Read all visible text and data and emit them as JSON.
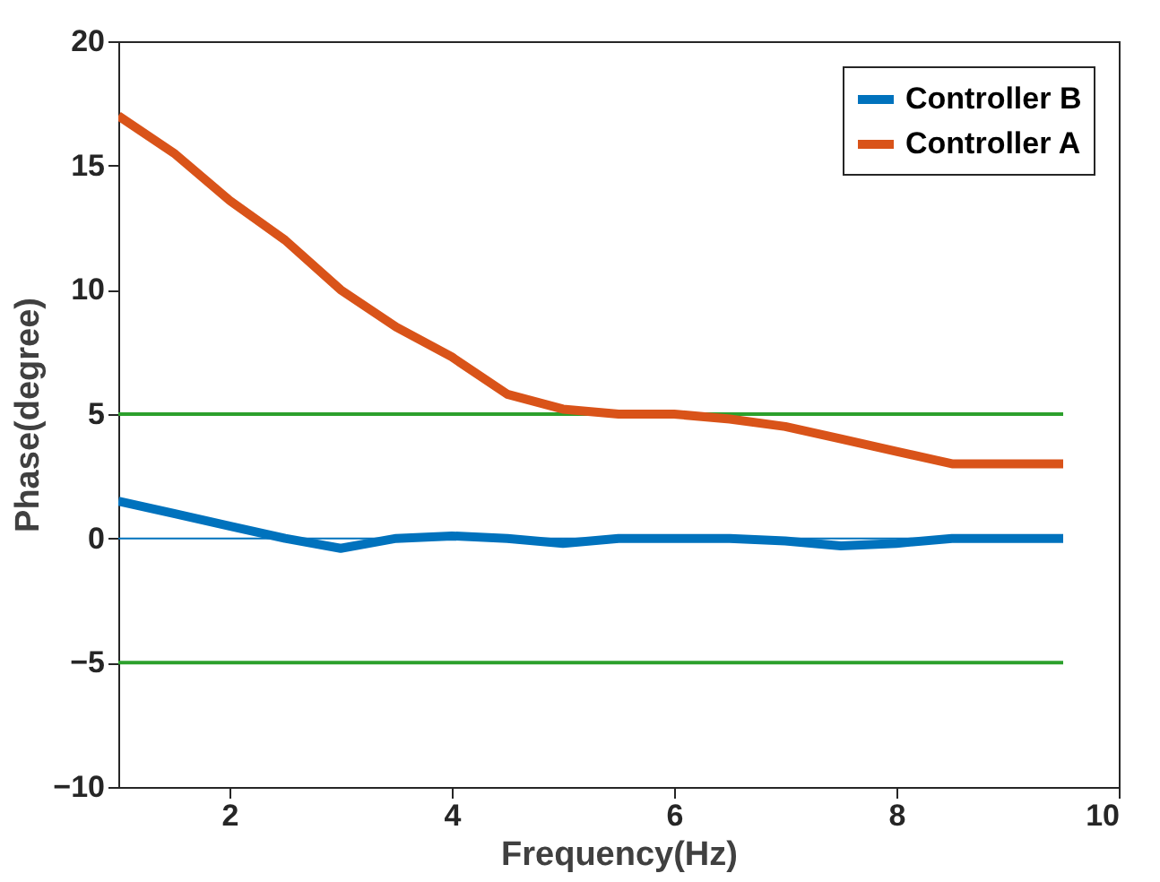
{
  "chart_data": {
    "type": "line",
    "xlabel": "Frequency(Hz)",
    "ylabel": "Phase(degree)",
    "xlim": [
      1,
      10
    ],
    "xticks": [
      2,
      4,
      6,
      8,
      10
    ],
    "ylim": [
      -10,
      20
    ],
    "yticks": [
      -10,
      -5,
      0,
      5,
      10,
      15,
      20
    ],
    "grid": false,
    "legend": "top right",
    "line_style": "solid",
    "marker": "none",
    "series": [
      {
        "color": "#0072bd",
        "x": [
          1,
          9.5
        ],
        "values": [
          0,
          0
        ]
      },
      {
        "color": "#2ca02c",
        "x": [
          1,
          9.5
        ],
        "values": [
          5,
          5
        ]
      },
      {
        "color": "#2ca02c",
        "x": [
          1,
          9.5
        ],
        "values": [
          -5,
          -5
        ]
      },
      {
        "name": "Controller B",
        "color": "#0072bd",
        "x": [
          1,
          1.5,
          2,
          2.5,
          3,
          3.5,
          4,
          4.5,
          5,
          5.5,
          6,
          6.5,
          7,
          7.5,
          8,
          8.5,
          9,
          9.5
        ],
        "values": [
          1.5,
          1,
          0.5,
          0,
          -0.4,
          0,
          0.1,
          0,
          -0.2,
          0,
          0,
          0,
          -0.1,
          -0.3,
          -0.2,
          0,
          0,
          0
        ]
      },
      {
        "name": "Controller A",
        "color": "#d95319",
        "x": [
          1,
          1.5,
          2,
          2.5,
          3,
          3.5,
          4,
          4.5,
          5,
          5.5,
          6,
          6.5,
          7,
          7.5,
          8,
          8.5,
          9,
          9.5
        ],
        "values": [
          17,
          15.5,
          13.6,
          12,
          10,
          8.5,
          7.3,
          5.8,
          5.2,
          5,
          5,
          4.8,
          4.5,
          4,
          3.5,
          3,
          3,
          3
        ]
      }
    ]
  }
}
